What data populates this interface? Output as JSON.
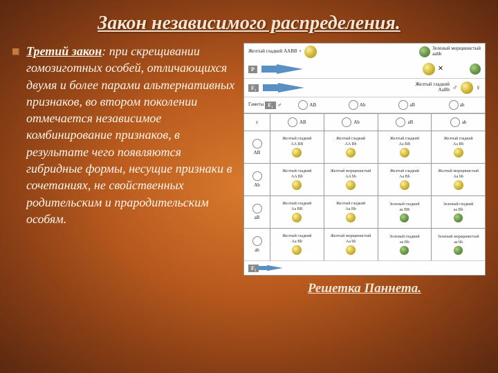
{
  "title": "Закон независимого распределения.",
  "law": {
    "lead": "Третий закон",
    "body": ": при скрещивании гомозиготных особей, отличающихся двумя и более парами альтернативных признаков, во втором поколении отмечается независимое комбинирование признаков, в результате чего появляются гибридные формы, несущие признаки в сочетаниях, не свойственных родительским и прародительским особям."
  },
  "caption": "Решетка Паннета.",
  "diagram": {
    "parent1": {
      "pheno": "Желтый гладкий",
      "geno": "ААВВ"
    },
    "parent2": {
      "pheno": "Зеленый морщинистый",
      "geno": "aabb"
    },
    "f1": {
      "pheno": "Желтый гладкий",
      "geno": "AaBb"
    },
    "labels": {
      "P": "P",
      "F1": "F₁",
      "F2": "F₂",
      "gametes": "Гаметы"
    },
    "gametes": [
      "AB",
      "Ab",
      "aB",
      "ab"
    ],
    "punnett": {
      "rows": [
        "AB",
        "Ab",
        "aB",
        "ab"
      ],
      "cols": [
        "AB",
        "Ab",
        "aB",
        "ab"
      ],
      "cells": [
        [
          {
            "pheno": "Желтый гладкий",
            "geno": "AA BB",
            "color": "y",
            "wr": false
          },
          {
            "pheno": "Желтый гладкий",
            "geno": "AA Bb",
            "color": "y",
            "wr": false
          },
          {
            "pheno": "Желтый гладкий",
            "geno": "Aa BB",
            "color": "y",
            "wr": false
          },
          {
            "pheno": "Желтый гладкий",
            "geno": "Aa Bb",
            "color": "y",
            "wr": false
          }
        ],
        [
          {
            "pheno": "Желтый гладкий",
            "geno": "AA Bb",
            "color": "y",
            "wr": false
          },
          {
            "pheno": "Желтый морщинистый",
            "geno": "AA bb",
            "color": "y",
            "wr": true
          },
          {
            "pheno": "Желтый гладкий",
            "geno": "Aa Bb",
            "color": "y",
            "wr": false
          },
          {
            "pheno": "Желтый морщинистый",
            "geno": "Aa bb",
            "color": "y",
            "wr": true
          }
        ],
        [
          {
            "pheno": "Желтый гладкий",
            "geno": "Aa BB",
            "color": "y",
            "wr": false
          },
          {
            "pheno": "Желтый гладкий",
            "geno": "Aa Bb",
            "color": "y",
            "wr": false
          },
          {
            "pheno": "Зеленый гладкий",
            "geno": "aa BB",
            "color": "g",
            "wr": false
          },
          {
            "pheno": "Зеленый гладкий",
            "geno": "aa Bb",
            "color": "g",
            "wr": false
          }
        ],
        [
          {
            "pheno": "Желтый гладкий",
            "geno": "Aa Bb",
            "color": "y",
            "wr": false
          },
          {
            "pheno": "Желтый морщинистый",
            "geno": "Aa bb",
            "color": "y",
            "wr": true
          },
          {
            "pheno": "Зеленый гладкий",
            "geno": "aa Bb",
            "color": "g",
            "wr": false
          },
          {
            "pheno": "Зеленый морщинистый",
            "geno": "aa bb",
            "color": "g",
            "wr": true
          }
        ]
      ]
    },
    "colors": {
      "yellow_pea": "#d4b838",
      "green_pea": "#6a9848",
      "arrow": "#5a8fc4",
      "label_bg": "#888888"
    }
  }
}
